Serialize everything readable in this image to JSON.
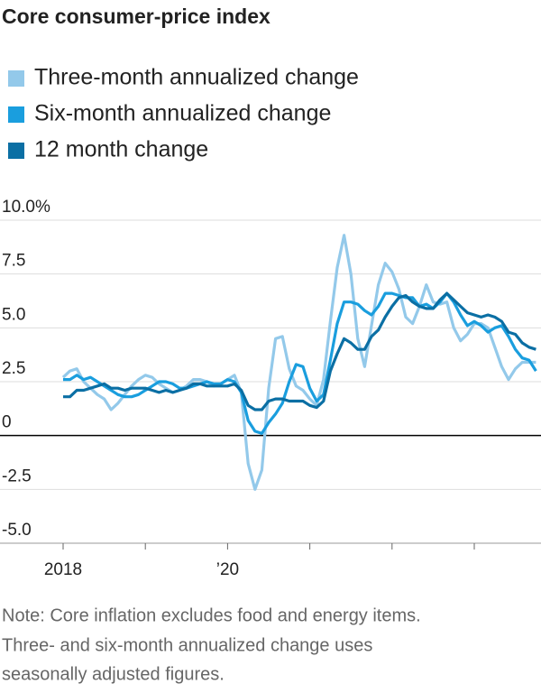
{
  "chart_data": {
    "type": "line",
    "title": "Core consumer-price index",
    "note": [
      "Note: Core inflation excludes food and energy items.",
      "Three- and six-month annualized change uses",
      "seasonally adjusted figures."
    ],
    "categories": [
      "2018",
      null,
      null,
      null,
      null,
      null,
      null,
      null,
      null,
      null,
      null,
      null,
      null,
      null,
      null,
      null,
      null,
      null,
      null,
      null,
      null,
      null,
      null,
      null,
      "’20",
      null,
      null,
      null,
      null,
      null,
      null,
      null,
      null,
      null,
      null,
      null,
      null,
      null,
      null,
      null,
      null,
      null,
      null,
      null,
      null,
      null,
      null,
      null,
      null,
      null,
      null,
      null,
      null,
      null,
      null,
      null,
      null,
      null,
      null,
      null,
      null,
      null,
      null,
      null,
      null,
      null,
      null,
      null,
      null,
      null
    ],
    "series": [
      {
        "name": "Three-month annualized change",
        "color": "#93c9ea",
        "values": [
          2.7,
          3.0,
          3.1,
          2.5,
          2.2,
          1.9,
          1.7,
          1.2,
          1.5,
          1.9,
          2.3,
          2.6,
          2.8,
          2.7,
          2.4,
          2.2,
          2.0,
          2.1,
          2.3,
          2.6,
          2.6,
          2.5,
          2.3,
          2.4,
          2.6,
          2.8,
          2.0,
          -1.3,
          -2.5,
          -1.6,
          2.2,
          4.5,
          4.6,
          3.1,
          2.3,
          2.1,
          1.7,
          1.4,
          2.6,
          5.3,
          7.8,
          9.3,
          7.5,
          4.5,
          3.2,
          5.1,
          7.0,
          8.0,
          7.6,
          6.8,
          5.5,
          5.2,
          6.0,
          7.0,
          6.2,
          6.1,
          6.2,
          5.0,
          4.4,
          4.7,
          5.2,
          5.2,
          5.0,
          4.1,
          3.2,
          2.6,
          3.1,
          3.4,
          3.4,
          3.4
        ]
      },
      {
        "name": "Six-month annualized change",
        "color": "#1a9ede",
        "values": [
          2.6,
          2.6,
          2.8,
          2.6,
          2.7,
          2.5,
          2.3,
          2.1,
          1.9,
          1.8,
          1.8,
          1.9,
          2.1,
          2.3,
          2.5,
          2.5,
          2.4,
          2.2,
          2.2,
          2.3,
          2.4,
          2.5,
          2.4,
          2.4,
          2.6,
          2.5,
          2.0,
          0.7,
          0.2,
          0.1,
          0.6,
          1.0,
          1.5,
          2.5,
          3.3,
          3.2,
          2.2,
          1.6,
          1.9,
          3.5,
          5.2,
          6.2,
          6.2,
          6.1,
          5.8,
          5.6,
          6.0,
          6.6,
          6.6,
          6.5,
          6.4,
          6.4,
          6.0,
          6.1,
          5.9,
          6.2,
          6.6,
          6.2,
          5.6,
          5.1,
          5.3,
          5.1,
          4.8,
          5.0,
          5.1,
          4.6,
          4.0,
          3.6,
          3.5,
          3.0
        ]
      },
      {
        "name": "12 month change",
        "color": "#0b6fa4",
        "values": [
          1.8,
          1.8,
          2.1,
          2.1,
          2.2,
          2.3,
          2.4,
          2.2,
          2.2,
          2.1,
          2.2,
          2.2,
          2.2,
          2.1,
          2.0,
          2.1,
          2.0,
          2.1,
          2.2,
          2.4,
          2.4,
          2.3,
          2.3,
          2.3,
          2.3,
          2.4,
          2.1,
          1.4,
          1.2,
          1.2,
          1.6,
          1.7,
          1.7,
          1.6,
          1.6,
          1.6,
          1.4,
          1.3,
          1.6,
          3.0,
          3.8,
          4.5,
          4.3,
          4.0,
          4.0,
          4.6,
          4.9,
          5.5,
          6.0,
          6.4,
          6.5,
          6.2,
          6.0,
          5.9,
          5.9,
          6.3,
          6.6,
          6.3,
          6.0,
          5.7,
          5.6,
          5.5,
          5.6,
          5.5,
          5.3,
          4.8,
          4.7,
          4.3,
          4.1,
          4.0
        ]
      }
    ],
    "ylim": [
      -5,
      10
    ],
    "yticks": [
      {
        "value": 10,
        "label": "10.0%"
      },
      7.5,
      {
        "value": 5,
        "label": "5.0"
      },
      2.5,
      0,
      -2.5,
      {
        "value": -5,
        "label": "-5.0"
      }
    ],
    "grid": true
  }
}
